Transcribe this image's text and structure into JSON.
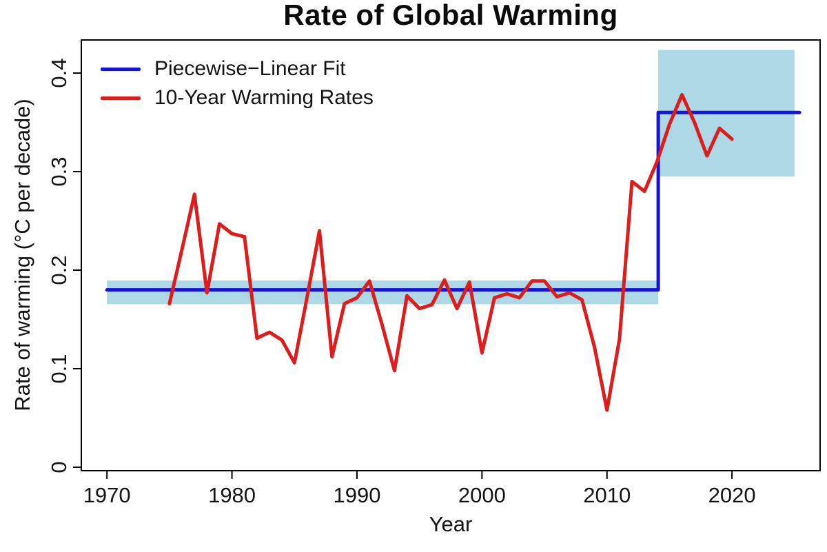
{
  "title": "Rate of Global Warming",
  "colors": {
    "fit": "#1414d6",
    "rates": "#dd1c1c",
    "band": "#add8e6",
    "frame": "#000000",
    "tick_text": "#141414"
  },
  "legend": [
    {
      "label": "Piecewise−Linear Fit",
      "color": "#1414d6"
    },
    {
      "label": "10-Year Warming Rates",
      "color": "#dd1c1c"
    }
  ],
  "axes": {
    "x": {
      "label": "Year",
      "ticks": [
        "1970",
        "1980",
        "1990",
        "2000",
        "2010",
        "2020"
      ],
      "tick_values": [
        1970,
        1980,
        1990,
        2000,
        2010,
        2020
      ],
      "range": [
        1967.95,
        2027.05
      ]
    },
    "y": {
      "label": "Rate of warming (°C per decade)",
      "ticks": [
        "0",
        "0.1",
        "0.2",
        "0.3",
        "0.4"
      ],
      "tick_values": [
        0,
        0.1,
        0.2,
        0.3,
        0.4
      ],
      "range": [
        -0.0035,
        0.4336
      ]
    }
  },
  "chart_data": {
    "type": "line",
    "title": "Rate of Global Warming",
    "xlabel": "Year",
    "ylabel": "Rate of warming (°C per decade)",
    "xlim": [
      1968,
      2027
    ],
    "ylim": [
      0,
      0.433
    ],
    "grid": false,
    "legend_position": "top-left",
    "series": [
      {
        "name": "Piecewise-Linear Fit",
        "color": "#1414d6",
        "width": 5,
        "x": [
          1970,
          2014.1,
          2014.1,
          2025.4
        ],
        "y": [
          0.18,
          0.18,
          0.36,
          0.36
        ]
      },
      {
        "name": "10-Year Warming Rates",
        "color": "#dd1c1c",
        "width": 5,
        "x": [
          1975,
          1976,
          1977,
          1978,
          1979,
          1980,
          1981,
          1982,
          1983,
          1984,
          1985,
          1986,
          1987,
          1988,
          1989,
          1990,
          1991,
          1992,
          1993,
          1994,
          1995,
          1996,
          1997,
          1998,
          1999,
          2000,
          2001,
          2002,
          2003,
          2004,
          2005,
          2006,
          2007,
          2008,
          2009,
          2010,
          2011,
          2012,
          2013,
          2014,
          2015,
          2016,
          2017,
          2018,
          2019,
          2020
        ],
        "y": [
          0.166,
          0.221,
          0.277,
          0.177,
          0.247,
          0.237,
          0.234,
          0.131,
          0.137,
          0.129,
          0.106,
          0.172,
          0.24,
          0.112,
          0.166,
          0.172,
          0.189,
          0.145,
          0.098,
          0.174,
          0.161,
          0.165,
          0.19,
          0.161,
          0.188,
          0.116,
          0.172,
          0.176,
          0.172,
          0.189,
          0.189,
          0.173,
          0.177,
          0.17,
          0.122,
          0.058,
          0.13,
          0.29,
          0.28,
          0.31,
          0.348,
          0.378,
          0.35,
          0.316,
          0.344,
          0.333
        ]
      }
    ],
    "confidence_bands": [
      {
        "segment": "1970-2014",
        "x0": 1970,
        "x1": 2014.1,
        "y0": 0.1655,
        "y1": 0.1895,
        "color": "#add8e6"
      },
      {
        "segment": "2014-2025",
        "x0": 2014.1,
        "x1": 2025.0,
        "y0": 0.295,
        "y1": 0.4235,
        "color": "#add8e6"
      }
    ]
  }
}
